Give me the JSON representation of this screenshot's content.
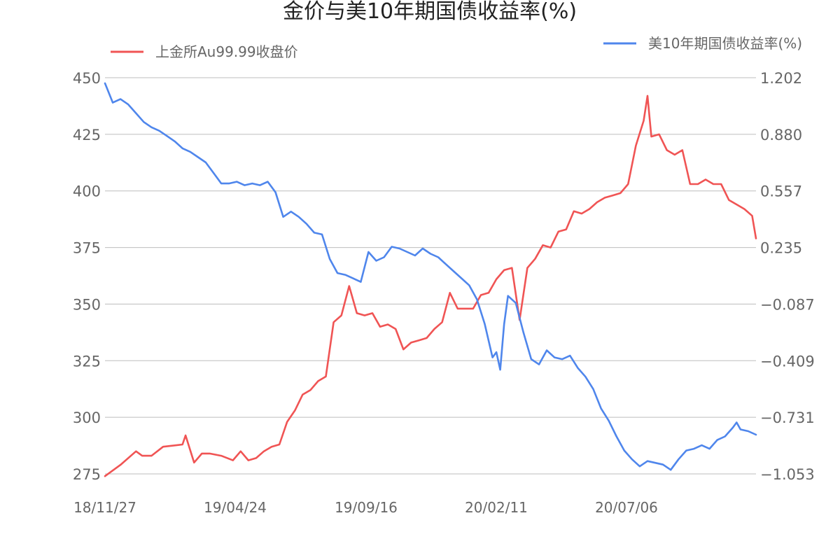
{
  "chart_data": {
    "type": "line",
    "title": "金价与美10年期国债收益率(%)",
    "categories": [
      "18/11/27",
      "19/04/24",
      "19/09/16",
      "20/02/11",
      "20/07/06"
    ],
    "y_left": {
      "ticks": [
        275,
        300,
        325,
        350,
        375,
        400,
        425,
        450
      ],
      "ylim": [
        275,
        450
      ]
    },
    "y_right": {
      "ticks": [
        "1.202",
        "0.880",
        "0.557",
        "0.235",
        "−0.087",
        "−0.409",
        "−0.731",
        "−1.053"
      ],
      "ylim": [
        -1.053,
        1.202
      ]
    },
    "grid": true,
    "series": [
      {
        "name": "上金所Au99.99收盘价",
        "axis": "left",
        "color": "#f05454",
        "legend_position": "top-left",
        "values": [
          [
            0,
            274
          ],
          [
            20,
            279
          ],
          [
            40,
            285
          ],
          [
            48,
            283
          ],
          [
            60,
            283
          ],
          [
            75,
            287
          ],
          [
            100,
            288
          ],
          [
            104,
            292
          ],
          [
            115,
            280
          ],
          [
            125,
            284
          ],
          [
            135,
            284
          ],
          [
            150,
            283
          ],
          [
            165,
            281
          ],
          [
            175,
            285
          ],
          [
            185,
            281
          ],
          [
            195,
            282
          ],
          [
            205,
            285
          ],
          [
            215,
            287
          ],
          [
            225,
            288
          ],
          [
            235,
            298
          ],
          [
            245,
            303
          ],
          [
            255,
            310
          ],
          [
            265,
            312
          ],
          [
            275,
            316
          ],
          [
            285,
            318
          ],
          [
            295,
            342
          ],
          [
            305,
            345
          ],
          [
            315,
            358
          ],
          [
            325,
            346
          ],
          [
            335,
            345
          ],
          [
            345,
            346
          ],
          [
            355,
            340
          ],
          [
            365,
            341
          ],
          [
            375,
            339
          ],
          [
            385,
            330
          ],
          [
            395,
            333
          ],
          [
            405,
            334
          ],
          [
            415,
            335
          ],
          [
            425,
            339
          ],
          [
            435,
            342
          ],
          [
            445,
            355
          ],
          [
            455,
            348
          ],
          [
            465,
            348
          ],
          [
            475,
            348
          ],
          [
            485,
            354
          ],
          [
            495,
            355
          ],
          [
            505,
            361
          ],
          [
            515,
            365
          ],
          [
            525,
            366
          ],
          [
            535,
            343
          ],
          [
            545,
            366
          ],
          [
            555,
            370
          ],
          [
            565,
            376
          ],
          [
            575,
            375
          ],
          [
            585,
            382
          ],
          [
            595,
            383
          ],
          [
            605,
            391
          ],
          [
            615,
            390
          ],
          [
            625,
            392
          ],
          [
            635,
            395
          ],
          [
            645,
            397
          ],
          [
            655,
            398
          ],
          [
            665,
            399
          ],
          [
            675,
            403
          ],
          [
            685,
            420
          ],
          [
            695,
            431
          ],
          [
            700,
            442
          ],
          [
            705,
            424
          ],
          [
            715,
            425
          ],
          [
            725,
            418
          ],
          [
            735,
            416
          ],
          [
            745,
            418
          ],
          [
            755,
            403
          ],
          [
            765,
            403
          ],
          [
            775,
            405
          ],
          [
            785,
            403
          ],
          [
            795,
            403
          ],
          [
            805,
            396
          ],
          [
            815,
            394
          ],
          [
            825,
            392
          ],
          [
            835,
            389
          ],
          [
            840,
            379
          ]
        ]
      },
      {
        "name": "美10年期国债收益率(%)",
        "axis": "right",
        "color": "#4f86ec",
        "legend_position": "top-right",
        "values": [
          [
            0,
            1.17
          ],
          [
            10,
            1.06
          ],
          [
            20,
            1.08
          ],
          [
            30,
            1.05
          ],
          [
            40,
            1.0
          ],
          [
            50,
            0.95
          ],
          [
            60,
            0.92
          ],
          [
            70,
            0.9
          ],
          [
            80,
            0.87
          ],
          [
            90,
            0.84
          ],
          [
            100,
            0.8
          ],
          [
            110,
            0.78
          ],
          [
            120,
            0.75
          ],
          [
            130,
            0.72
          ],
          [
            140,
            0.66
          ],
          [
            150,
            0.6
          ],
          [
            160,
            0.6
          ],
          [
            170,
            0.61
          ],
          [
            180,
            0.59
          ],
          [
            190,
            0.6
          ],
          [
            200,
            0.59
          ],
          [
            210,
            0.61
          ],
          [
            220,
            0.55
          ],
          [
            230,
            0.41
          ],
          [
            240,
            0.44
          ],
          [
            250,
            0.41
          ],
          [
            260,
            0.37
          ],
          [
            270,
            0.32
          ],
          [
            280,
            0.31
          ],
          [
            290,
            0.17
          ],
          [
            300,
            0.09
          ],
          [
            310,
            0.08
          ],
          [
            320,
            0.06
          ],
          [
            330,
            0.04
          ],
          [
            340,
            0.21
          ],
          [
            350,
            0.16
          ],
          [
            360,
            0.18
          ],
          [
            370,
            0.24
          ],
          [
            380,
            0.23
          ],
          [
            390,
            0.21
          ],
          [
            400,
            0.19
          ],
          [
            410,
            0.23
          ],
          [
            420,
            0.2
          ],
          [
            430,
            0.18
          ],
          [
            440,
            0.14
          ],
          [
            450,
            0.1
          ],
          [
            460,
            0.06
          ],
          [
            470,
            0.02
          ],
          [
            480,
            -0.06
          ],
          [
            490,
            -0.2
          ],
          [
            500,
            -0.39
          ],
          [
            505,
            -0.36
          ],
          [
            510,
            -0.46
          ],
          [
            515,
            -0.2
          ],
          [
            520,
            -0.04
          ],
          [
            530,
            -0.08
          ],
          [
            540,
            -0.25
          ],
          [
            550,
            -0.4
          ],
          [
            560,
            -0.43
          ],
          [
            570,
            -0.35
          ],
          [
            580,
            -0.39
          ],
          [
            590,
            -0.4
          ],
          [
            600,
            -0.38
          ],
          [
            610,
            -0.45
          ],
          [
            620,
            -0.5
          ],
          [
            630,
            -0.57
          ],
          [
            640,
            -0.68
          ],
          [
            650,
            -0.75
          ],
          [
            660,
            -0.84
          ],
          [
            670,
            -0.92
          ],
          [
            680,
            -0.97
          ],
          [
            690,
            -1.01
          ],
          [
            700,
            -0.98
          ],
          [
            710,
            -0.99
          ],
          [
            720,
            -1.0
          ],
          [
            730,
            -1.03
          ],
          [
            740,
            -0.97
          ],
          [
            750,
            -0.92
          ],
          [
            760,
            -0.91
          ],
          [
            770,
            -0.89
          ],
          [
            780,
            -0.91
          ],
          [
            790,
            -0.86
          ],
          [
            800,
            -0.84
          ],
          [
            810,
            -0.79
          ],
          [
            815,
            -0.76
          ],
          [
            820,
            -0.8
          ],
          [
            830,
            -0.81
          ],
          [
            840,
            -0.83
          ]
        ]
      }
    ]
  }
}
